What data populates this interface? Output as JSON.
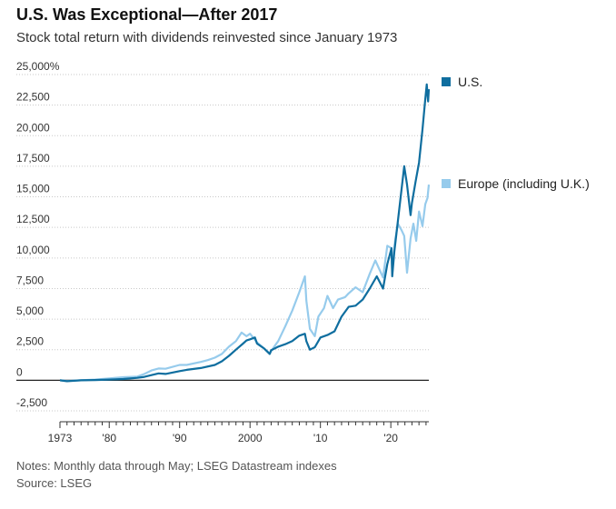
{
  "chart_data": {
    "type": "line",
    "title": "U.S. Was Exceptional—After 2017",
    "subtitle": "Stock total return with dividends reinvested since January 1973",
    "xlabel": "",
    "ylabel": "",
    "xlim": [
      1973.0,
      2025.4
    ],
    "ylim": [
      -2500,
      25000
    ],
    "y_ticks": [
      -2500,
      0,
      2500,
      5000,
      7500,
      10000,
      12500,
      15000,
      17500,
      20000,
      22500,
      25000
    ],
    "y_tick_labels": [
      "-2,500",
      "0",
      "2,500",
      "5,000",
      "7,500",
      "10,000",
      "12,500",
      "15,000",
      "17,500",
      "20,000",
      "22,500",
      "25,000%"
    ],
    "x_ticks": [
      1973,
      1980,
      1990,
      2000,
      2010,
      2020
    ],
    "x_tick_labels": [
      "1973",
      "'80",
      "'90",
      "2000",
      "'10",
      "'20"
    ],
    "grid": "horizontal",
    "legend": "right",
    "notes": "Notes: Monthly data through May; LSEG Datastream indexes",
    "source": "Source: LSEG",
    "series": [
      {
        "name": "U.S.",
        "color": "#0f6e9f",
        "x": [
          1973,
          1974,
          1975,
          1976,
          1978,
          1980,
          1982,
          1984,
          1985,
          1986,
          1987,
          1988,
          1990,
          1991,
          1993,
          1995,
          1996,
          1997,
          1998,
          1999,
          1999.5,
          2000,
          2000.7,
          2001,
          2002,
          2002.8,
          2003,
          2004,
          2005,
          2006,
          2007,
          2007.8,
          2008,
          2008.5,
          2009.2,
          2010,
          2011,
          2012,
          2013,
          2014,
          2015,
          2016,
          2017,
          2018,
          2018.9,
          2019.5,
          2020.1,
          2020.2,
          2020.5,
          2021,
          2021.5,
          2021.9,
          2022.3,
          2022.8,
          2023,
          2023.5,
          2024,
          2024.5,
          2024.9,
          2025.1,
          2025.3,
          2025.4
        ],
        "values": [
          0,
          -80,
          -40,
          0,
          20,
          60,
          100,
          200,
          280,
          420,
          560,
          520,
          750,
          850,
          1000,
          1250,
          1550,
          2000,
          2500,
          3000,
          3250,
          3350,
          3500,
          3000,
          2600,
          2150,
          2450,
          2750,
          2950,
          3200,
          3650,
          3800,
          3200,
          2500,
          2700,
          3500,
          3700,
          4000,
          5200,
          6000,
          6100,
          6600,
          7500,
          8500,
          7500,
          9500,
          10800,
          8500,
          10500,
          13000,
          15500,
          17500,
          16000,
          13500,
          14500,
          16200,
          17800,
          20500,
          23000,
          24200,
          22800,
          23800
        ]
      },
      {
        "name": "Europe (including U.K.)",
        "color": "#96cbec",
        "x": [
          1973,
          1974,
          1976,
          1978,
          1980,
          1982,
          1984,
          1985,
          1986,
          1987,
          1988,
          1990,
          1991,
          1993,
          1994,
          1995,
          1996,
          1997,
          1998,
          1998.8,
          1999.5,
          2000,
          2001,
          2002,
          2002.8,
          2003.5,
          2004,
          2005,
          2006,
          2007,
          2007.8,
          2008,
          2008.5,
          2009.2,
          2009.7,
          2010.5,
          2011,
          2011.8,
          2012.5,
          2013.5,
          2014,
          2015,
          2016,
          2017,
          2017.8,
          2018.9,
          2019.5,
          2020.1,
          2020.2,
          2020.6,
          2021,
          2021.5,
          2021.9,
          2022.3,
          2022.8,
          2023.2,
          2023.6,
          2024,
          2024.5,
          2024.9,
          2025.2,
          2025.4
        ],
        "values": [
          0,
          -60,
          0,
          60,
          150,
          250,
          300,
          520,
          800,
          960,
          940,
          1250,
          1250,
          1500,
          1650,
          1850,
          2150,
          2750,
          3200,
          3900,
          3600,
          3800,
          3100,
          2600,
          2200,
          2800,
          3200,
          4400,
          5700,
          7200,
          8500,
          6500,
          4200,
          3600,
          5200,
          5900,
          6900,
          5900,
          6600,
          6800,
          7100,
          7600,
          7200,
          8700,
          9800,
          8400,
          11000,
          10800,
          8800,
          11400,
          12800,
          12300,
          11800,
          8800,
          11600,
          12800,
          11400,
          13800,
          12600,
          14400,
          14900,
          16000
        ]
      }
    ]
  }
}
